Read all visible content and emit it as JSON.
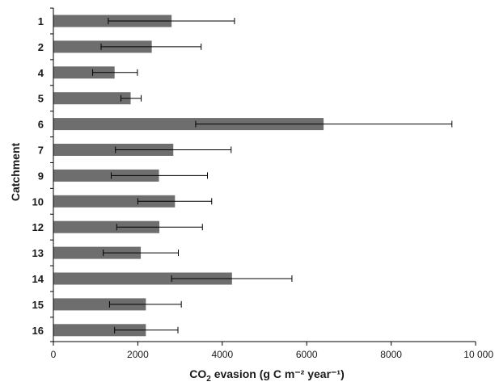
{
  "chart_data": {
    "type": "bar",
    "orientation": "horizontal",
    "categories": [
      "1",
      "2",
      "4",
      "5",
      "6",
      "7",
      "9",
      "10",
      "12",
      "13",
      "14",
      "15",
      "16"
    ],
    "values": [
      2800,
      2330,
      1450,
      1830,
      6400,
      2840,
      2500,
      2880,
      2510,
      2070,
      4230,
      2190,
      2190
    ],
    "error_low": [
      1300,
      1130,
      930,
      1600,
      3370,
      1470,
      1370,
      2000,
      1500,
      1180,
      2800,
      1330,
      1450
    ],
    "error_high": [
      4290,
      3500,
      1990,
      2080,
      9440,
      4210,
      3650,
      3750,
      3530,
      2960,
      5650,
      3030,
      2950
    ],
    "xlabel": {
      "prefix": "CO",
      "subscript": "2",
      "suffix": " evasion (g C m⁻² year⁻¹)"
    },
    "ylabel": "Catchment",
    "xlim": [
      0,
      10000
    ],
    "xticks": [
      0,
      2000,
      4000,
      6000,
      8000,
      10000
    ],
    "xtick_labels": [
      "0",
      "2000",
      "4000",
      "6000",
      "8000",
      "10 000"
    ],
    "bar_color": "#6e6e6e",
    "grid": false,
    "legend": "none"
  }
}
